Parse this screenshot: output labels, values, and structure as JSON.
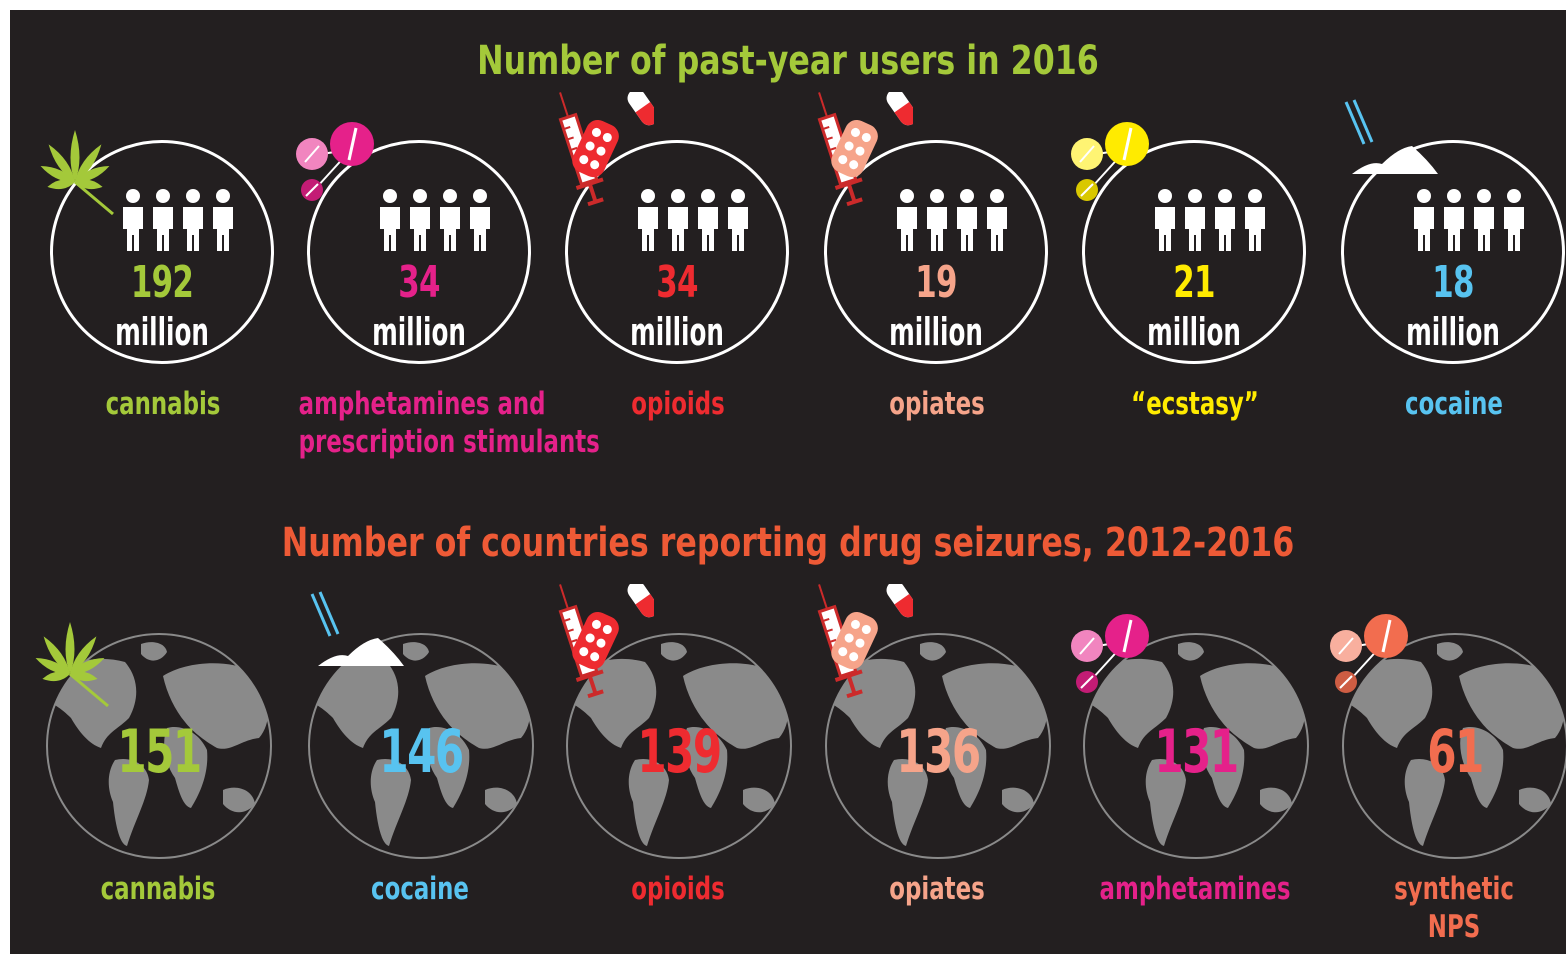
{
  "colors": {
    "background": "#231f20",
    "title_users": "#a4c93a",
    "title_seizures": "#ee5a36",
    "cannabis": "#a4c93a",
    "amphetamines": "#e5218a",
    "opioids": "#ee2b30",
    "opiates": "#f6a48a",
    "ecstasy": "#ffeb00",
    "cocaine": "#58c3f0",
    "synthetic_nps": "#f26d4f",
    "globe_land": "#8a8a8a",
    "globe_sea": "#231f20"
  },
  "chart_data": [
    {
      "type": "bar",
      "title": "Number of past-year users in 2016",
      "unit": "million",
      "categories": [
        "cannabis",
        "amphetamines and prescription stimulants",
        "opioids",
        "opiates",
        "“ecstasy”",
        "cocaine"
      ],
      "values": [
        192,
        34,
        34,
        19,
        21,
        18
      ],
      "category_colors": [
        "#a4c93a",
        "#e5218a",
        "#ee2b30",
        "#f6a48a",
        "#ffeb00",
        "#58c3f0"
      ],
      "icons": [
        "cannabis-leaf-icon",
        "pills-icon",
        "syringe-capsule-icon",
        "syringe-capsule-icon",
        "pills-icon",
        "powder-straw-icon"
      ],
      "label_lines": [
        [
          "cannabis"
        ],
        [
          "amphetamines and",
          "prescription stimulants"
        ],
        [
          "opioids"
        ],
        [
          "opiates"
        ],
        [
          "“ecstasy”"
        ],
        [
          "cocaine"
        ]
      ]
    },
    {
      "type": "bar",
      "title": "Number of countries reporting drug seizures, 2012-2016",
      "categories": [
        "cannabis",
        "cocaine",
        "opioids",
        "opiates",
        "amphetamines",
        "synthetic NPS"
      ],
      "values": [
        151,
        146,
        139,
        136,
        131,
        61
      ],
      "category_colors": [
        "#a4c93a",
        "#58c3f0",
        "#ee2b30",
        "#f6a48a",
        "#e5218a",
        "#f26d4f"
      ],
      "icons": [
        "cannabis-leaf-icon",
        "powder-straw-icon",
        "syringe-capsule-icon",
        "syringe-capsule-icon",
        "pills-icon",
        "pills-icon"
      ],
      "label_lines": [
        [
          "cannabis"
        ],
        [
          "cocaine"
        ],
        [
          "opioids"
        ],
        [
          "opiates"
        ],
        [
          "amphetamines"
        ],
        [
          "synthetic",
          "NPS"
        ]
      ]
    }
  ]
}
